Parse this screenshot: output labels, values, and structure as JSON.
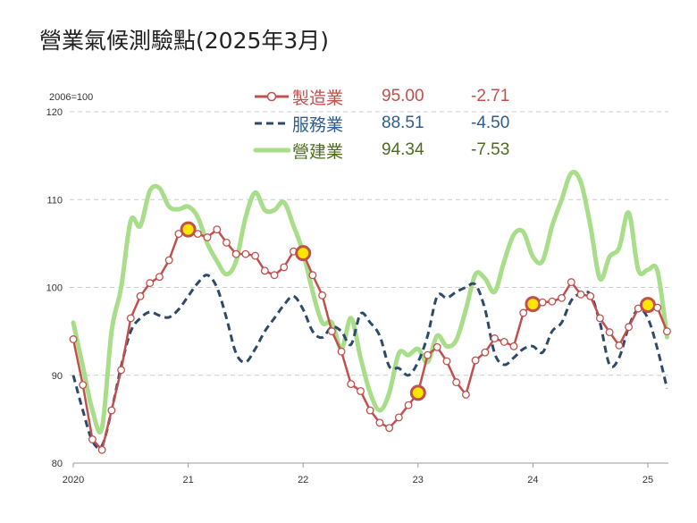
{
  "title": "營業氣候測驗點(2025年3月)",
  "unit_label": "2006=100",
  "colors": {
    "manufacturing": "#C0504D",
    "services": "#2E4A6B",
    "construction": "#A8DD8A",
    "construction_text": "#4E6B1E",
    "services_text": "#2F5C8F",
    "manufacturing_text": "#C0504D",
    "highlight_fill": "#FFE600",
    "grid": "#CCCCCC"
  },
  "legend": [
    {
      "label": "製造業",
      "value": "95.00",
      "change": "-2.71"
    },
    {
      "label": "服務業",
      "value": "88.51",
      "change": "-4.50"
    },
    {
      "label": "營建業",
      "value": "94.34",
      "change": "-7.53"
    }
  ],
  "axis": {
    "y_ticks": [
      "120",
      "110",
      "100",
      "90",
      "80"
    ],
    "x_ticks": [
      "2020",
      "21",
      "22",
      "23",
      "24",
      "25"
    ]
  },
  "chart_data": {
    "type": "line",
    "title": "營業氣候測驗點(2025年3月)",
    "ylabel": "2006=100",
    "xlabel": "",
    "ylim": [
      80,
      120
    ],
    "y_ticks": [
      80,
      90,
      100,
      110,
      120
    ],
    "x_tick_labels": [
      "2020",
      "21",
      "22",
      "23",
      "24",
      "25"
    ],
    "grid": "horizontal dashed",
    "legend_position": "top",
    "x": [
      "2020-01",
      "2020-02",
      "2020-03",
      "2020-04",
      "2020-05",
      "2020-06",
      "2020-07",
      "2020-08",
      "2020-09",
      "2020-10",
      "2020-11",
      "2020-12",
      "2021-01",
      "2021-02",
      "2021-03",
      "2021-04",
      "2021-05",
      "2021-06",
      "2021-07",
      "2021-08",
      "2021-09",
      "2021-10",
      "2021-11",
      "2021-12",
      "2022-01",
      "2022-02",
      "2022-03",
      "2022-04",
      "2022-05",
      "2022-06",
      "2022-07",
      "2022-08",
      "2022-09",
      "2022-10",
      "2022-11",
      "2022-12",
      "2023-01",
      "2023-02",
      "2023-03",
      "2023-04",
      "2023-05",
      "2023-06",
      "2023-07",
      "2023-08",
      "2023-09",
      "2023-10",
      "2023-11",
      "2023-12",
      "2024-01",
      "2024-02",
      "2024-03",
      "2024-04",
      "2024-05",
      "2024-06",
      "2024-07",
      "2024-08",
      "2024-09",
      "2024-10",
      "2024-11",
      "2024-12",
      "2025-01",
      "2025-02",
      "2025-03"
    ],
    "series": [
      {
        "name": "製造業",
        "latest": 95.0,
        "change": -2.71,
        "style": "solid line with hollow circle markers",
        "highlighted_points": [
          "2021-01",
          "2022-01",
          "2023-01",
          "2024-01",
          "2025-01"
        ],
        "values": [
          94.1,
          88.9,
          82.7,
          81.5,
          86.0,
          90.6,
          96.5,
          99.0,
          100.5,
          101.2,
          103.1,
          106.1,
          106.6,
          106.1,
          105.7,
          106.6,
          105.1,
          103.8,
          103.8,
          103.6,
          101.9,
          101.4,
          102.3,
          104.1,
          103.9,
          101.4,
          99.1,
          95.0,
          92.7,
          89.0,
          88.2,
          86.0,
          84.6,
          84.0,
          85.2,
          86.6,
          88.0,
          92.3,
          93.2,
          91.6,
          89.2,
          87.8,
          91.7,
          92.6,
          94.2,
          93.8,
          93.3,
          97.1,
          98.1,
          98.3,
          98.4,
          98.8,
          100.6,
          99.2,
          99.0,
          96.5,
          94.9,
          93.4,
          95.5,
          97.6,
          98.0,
          97.7,
          95.0
        ]
      },
      {
        "name": "服務業",
        "latest": 88.51,
        "change": -4.5,
        "style": "dashed line",
        "values": [
          90.0,
          86.0,
          82.5,
          82.0,
          86.0,
          91.0,
          95.0,
          96.5,
          97.2,
          96.8,
          96.6,
          97.5,
          99.0,
          100.5,
          101.4,
          100.0,
          96.5,
          92.5,
          91.5,
          93.0,
          95.0,
          96.5,
          98.0,
          99.0,
          97.5,
          95.0,
          94.3,
          95.5,
          95.0,
          93.5,
          97.0,
          96.0,
          94.5,
          91.0,
          90.8,
          90.0,
          91.5,
          94.5,
          99.0,
          98.8,
          99.5,
          100.0,
          100.3,
          97.5,
          92.5,
          91.2,
          92.0,
          93.0,
          93.3,
          92.6,
          95.0,
          96.0,
          98.5,
          99.3,
          99.2,
          96.0,
          91.2,
          92.0,
          95.5,
          97.5,
          96.5,
          93.0,
          88.51
        ]
      },
      {
        "name": "營建業",
        "latest": 94.34,
        "change": -7.53,
        "style": "thick light-green line",
        "values": [
          96.0,
          91.0,
          86.0,
          84.0,
          95.0,
          100.0,
          107.6,
          107.0,
          111.0,
          111.3,
          109.2,
          108.9,
          109.2,
          108.0,
          105.0,
          103.0,
          101.5,
          103.0,
          108.0,
          110.8,
          108.8,
          108.8,
          109.7,
          107.0,
          104.0,
          99.5,
          96.0,
          96.0,
          93.0,
          96.5,
          92.0,
          88.0,
          86.0,
          88.0,
          92.5,
          92.3,
          93.0,
          91.5,
          94.5,
          93.3,
          94.0,
          97.5,
          101.5,
          101.0,
          99.5,
          103.0,
          106.0,
          106.3,
          103.5,
          103.0,
          107.0,
          110.0,
          113.0,
          112.0,
          107.0,
          101.0,
          103.5,
          104.5,
          108.5,
          102.0,
          102.0,
          101.87,
          94.34
        ]
      }
    ]
  }
}
